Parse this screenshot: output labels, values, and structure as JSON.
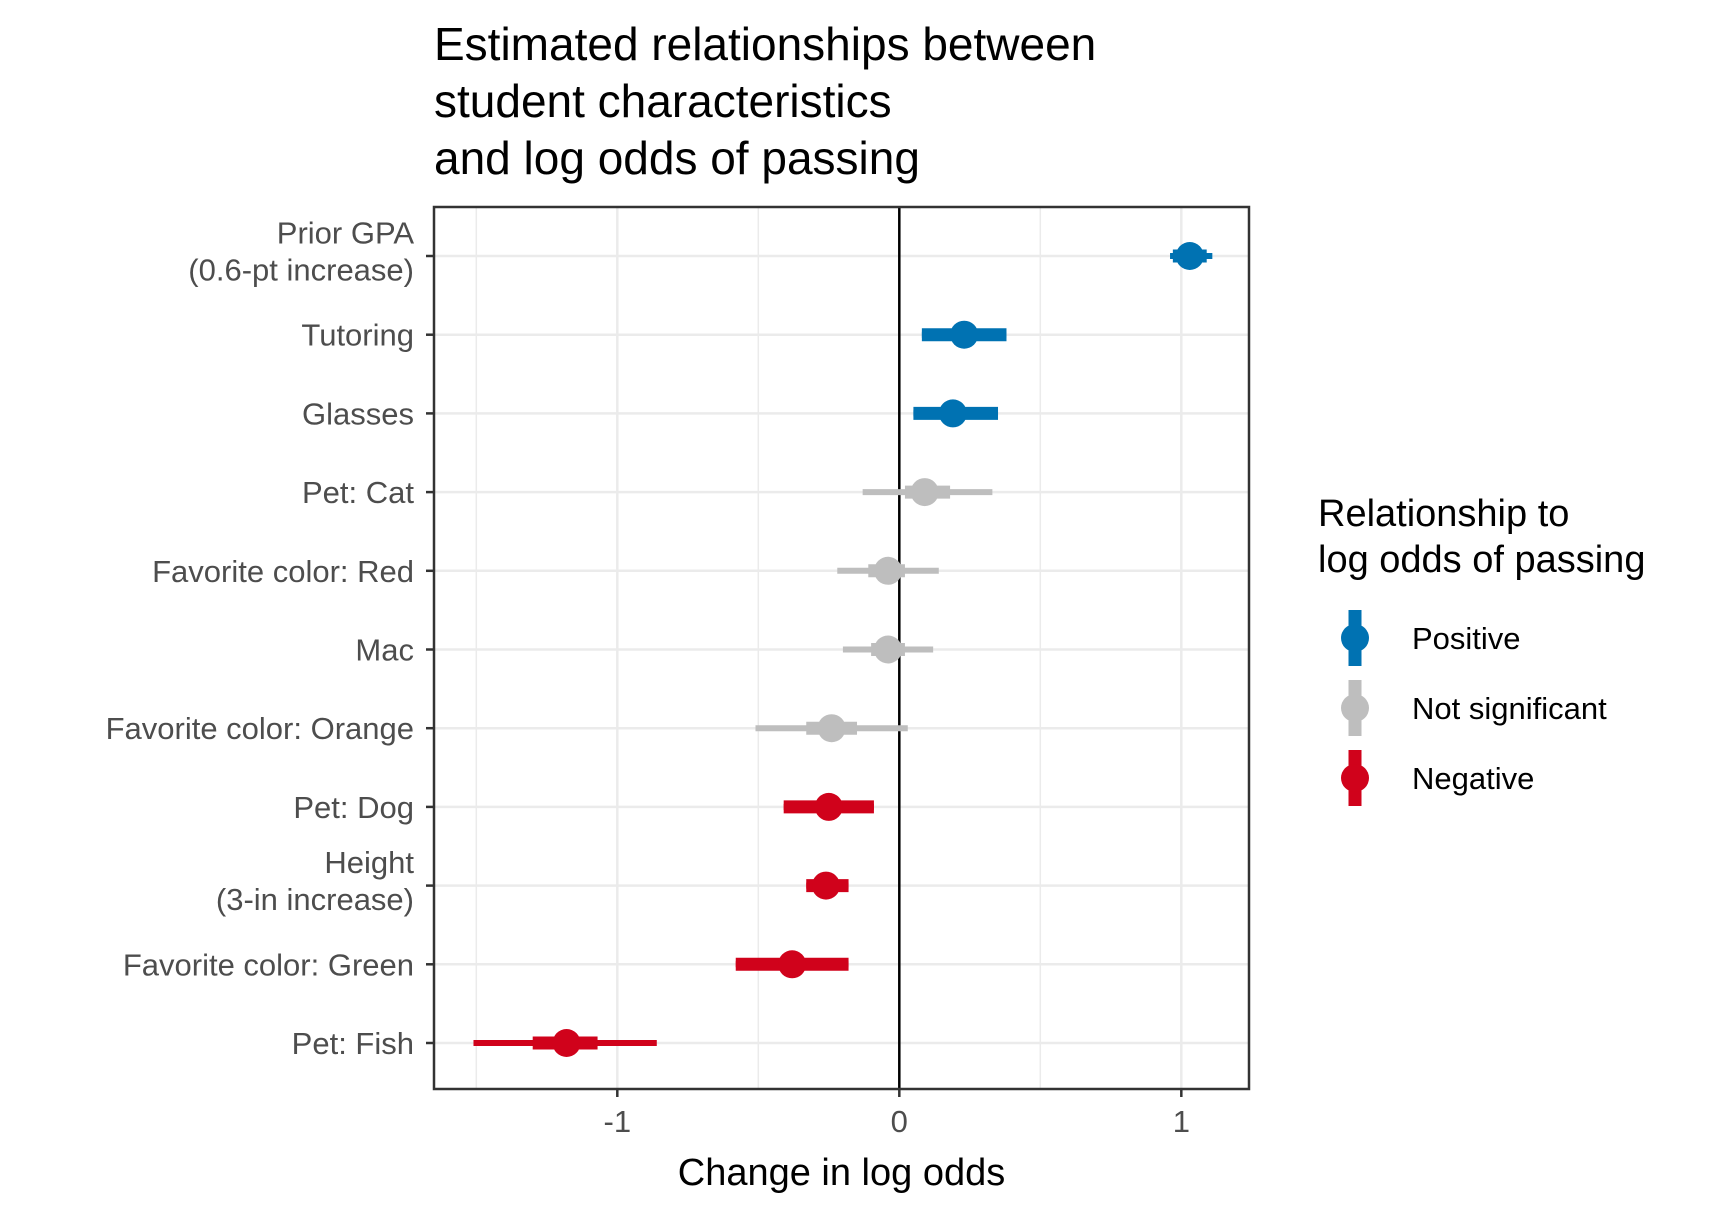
{
  "chart_data": {
    "type": "forest",
    "title": [
      "Estimated relationships between",
      "student characteristics",
      "and log odds of passing"
    ],
    "xlabel": "Change in log odds",
    "ylabel": "",
    "xlim": [
      -1.65,
      1.24
    ],
    "xticks": [
      -1,
      0,
      1
    ],
    "xtick_labels": [
      "-1",
      "0",
      "1"
    ],
    "grid": true,
    "reference_line_x": 0,
    "legend": {
      "title": [
        "Relationship to",
        "log odds of passing"
      ],
      "position": "right",
      "entries": [
        {
          "key": "positive",
          "label": "Positive",
          "color": "#0072B2"
        },
        {
          "key": "ns",
          "label": "Not significant",
          "color": "#BEBEBE"
        },
        {
          "key": "negative",
          "label": "Negative",
          "color": "#D0021B"
        }
      ]
    },
    "rows": [
      {
        "label": [
          "Prior GPA",
          "(0.6-pt increase)"
        ],
        "estimate": 1.03,
        "inner": [
          0.97,
          1.09
        ],
        "outer": [
          0.96,
          1.11
        ],
        "group": "positive"
      },
      {
        "label": [
          "Tutoring"
        ],
        "estimate": 0.23,
        "inner": [
          0.08,
          0.38
        ],
        "outer": [
          0.08,
          0.38
        ],
        "group": "positive"
      },
      {
        "label": [
          "Glasses"
        ],
        "estimate": 0.19,
        "inner": [
          0.05,
          0.35
        ],
        "outer": [
          0.05,
          0.35
        ],
        "group": "positive"
      },
      {
        "label": [
          "Pet: Cat"
        ],
        "estimate": 0.09,
        "inner": [
          0.02,
          0.18
        ],
        "outer": [
          -0.13,
          0.33
        ],
        "group": "ns"
      },
      {
        "label": [
          "Favorite color: Red"
        ],
        "estimate": -0.04,
        "inner": [
          -0.11,
          0.02
        ],
        "outer": [
          -0.22,
          0.14
        ],
        "group": "ns"
      },
      {
        "label": [
          "Mac"
        ],
        "estimate": -0.04,
        "inner": [
          -0.1,
          0.02
        ],
        "outer": [
          -0.2,
          0.12
        ],
        "group": "ns"
      },
      {
        "label": [
          "Favorite color: Orange"
        ],
        "estimate": -0.24,
        "inner": [
          -0.33,
          -0.15
        ],
        "outer": [
          -0.51,
          0.03
        ],
        "group": "ns"
      },
      {
        "label": [
          "Pet: Dog"
        ],
        "estimate": -0.25,
        "inner": [
          -0.41,
          -0.09
        ],
        "outer": [
          -0.41,
          -0.09
        ],
        "group": "negative"
      },
      {
        "label": [
          "Height",
          "(3-in increase)"
        ],
        "estimate": -0.26,
        "inner": [
          -0.33,
          -0.18
        ],
        "outer": [
          -0.33,
          -0.18
        ],
        "group": "negative"
      },
      {
        "label": [
          "Favorite color: Green"
        ],
        "estimate": -0.38,
        "inner": [
          -0.58,
          -0.18
        ],
        "outer": [
          -0.58,
          -0.18
        ],
        "group": "negative"
      },
      {
        "label": [
          "Pet: Fish"
        ],
        "estimate": -1.18,
        "inner": [
          -1.3,
          -1.07
        ],
        "outer": [
          -1.51,
          -0.86
        ],
        "group": "negative"
      }
    ]
  }
}
